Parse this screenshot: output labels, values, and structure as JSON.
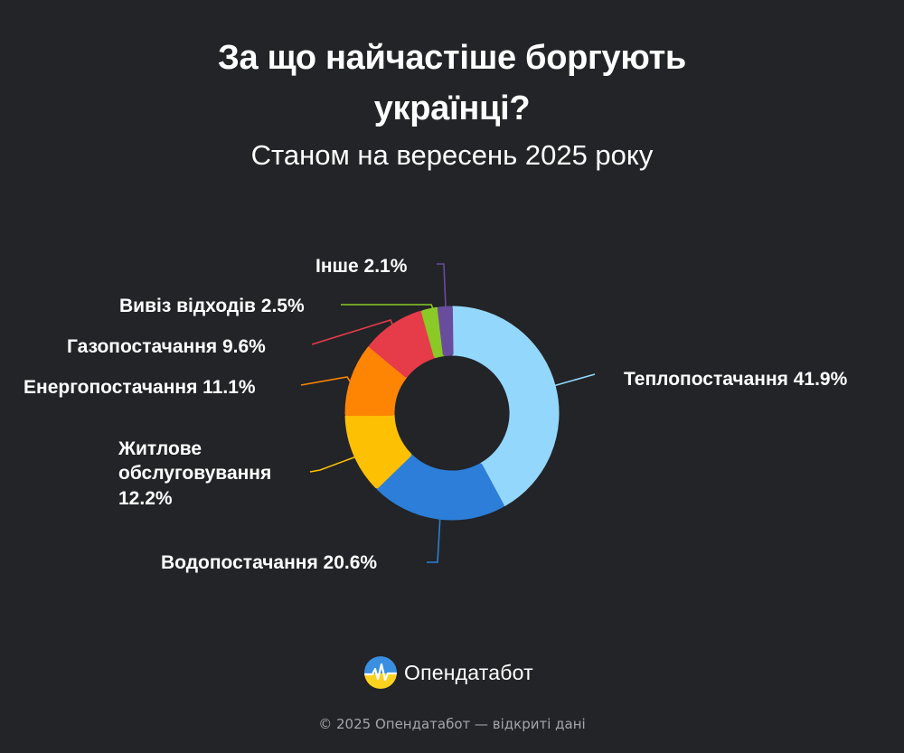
{
  "header": {
    "title": "За що найчастіше боргують українці?",
    "subtitle": "Станом на вересень 2025 року"
  },
  "chart_data": {
    "type": "pie",
    "style": "donut",
    "title": "За що найчастіше боргують українці?",
    "subtitle": "Станом на вересень 2025 року",
    "unit": "%",
    "slices": [
      {
        "label": "Теплопостачання",
        "value": 41.9,
        "display": "Теплопостачання 41.9%",
        "color": "#94d7fc"
      },
      {
        "label": "Водопостачання",
        "value": 20.6,
        "display": "Водопостачання 20.6%",
        "color": "#2c7ed9"
      },
      {
        "label": "Житлове обслуговування",
        "value": 12.2,
        "display": "Житлове обслуговування 12.2%",
        "color": "#fec003"
      },
      {
        "label": "Енергопостачання",
        "value": 11.1,
        "display": "Енергопостачання 11.1%",
        "color": "#fe8504"
      },
      {
        "label": "Газопостачання",
        "value": 9.6,
        "display": "Газопостачання 9.6%",
        "color": "#e63b49"
      },
      {
        "label": "Вивіз відходів",
        "value": 2.5,
        "display": "Вивіз відходів 2.5%",
        "color": "#8ac926"
      },
      {
        "label": "Інше",
        "value": 2.1,
        "display": "Інше 2.1%",
        "color": "#6a4c9c"
      }
    ]
  },
  "brand": {
    "name": "Опендатабот",
    "logo_icon": "opendatabot-logo-icon"
  },
  "footer": {
    "text": "© 2025 Опендатабот — відкриті дані"
  }
}
